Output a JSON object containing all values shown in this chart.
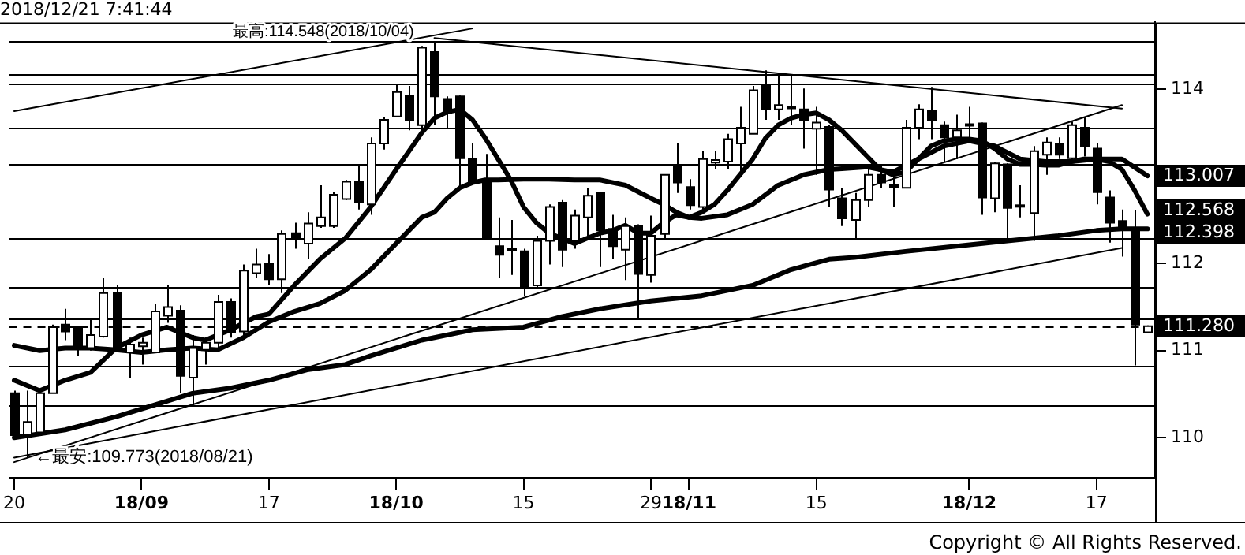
{
  "chart_data": {
    "type": "candlestick",
    "title": "2018/12/21 7:41:44",
    "categories": [
      "20",
      null,
      null,
      null,
      null,
      null,
      null,
      null,
      null,
      null,
      "18/09",
      null,
      null,
      null,
      null,
      null,
      null,
      null,
      null,
      null,
      "17",
      null,
      null,
      null,
      null,
      null,
      null,
      null,
      null,
      null,
      "18/10",
      null,
      null,
      null,
      null,
      null,
      null,
      null,
      null,
      null,
      "15",
      null,
      null,
      null,
      null,
      null,
      null,
      null,
      null,
      null,
      "29",
      null,
      null,
      "18/11",
      null,
      null,
      null,
      null,
      null,
      null,
      null,
      null,
      null,
      "15",
      null,
      null,
      null,
      null,
      null,
      null,
      null,
      null,
      null,
      null,
      null,
      "18/12",
      null,
      null,
      null,
      null,
      null,
      null,
      null,
      null,
      null,
      "17",
      null,
      null,
      null,
      null
    ],
    "ohlc": [
      [
        110.51,
        110.54,
        109.99,
        110.03
      ],
      [
        110.03,
        110.54,
        109.773,
        110.18
      ],
      [
        110.06,
        110.54,
        110.03,
        110.51
      ],
      [
        110.51,
        111.3,
        110.51,
        111.27
      ],
      [
        111.3,
        111.48,
        111.12,
        111.22
      ],
      [
        111.27,
        111.27,
        110.94,
        111.03
      ],
      [
        111.03,
        111.36,
        111.0,
        111.18
      ],
      [
        111.16,
        111.84,
        111.15,
        111.66
      ],
      [
        111.66,
        111.75,
        111.0,
        111.0
      ],
      [
        110.98,
        111.15,
        110.69,
        111.07
      ],
      [
        111.05,
        111.15,
        110.84,
        111.09
      ],
      [
        110.98,
        111.54,
        110.98,
        111.45
      ],
      [
        111.4,
        111.75,
        111.32,
        111.5
      ],
      [
        111.46,
        111.52,
        110.51,
        110.71
      ],
      [
        110.69,
        111.18,
        110.37,
        111.03
      ],
      [
        111.01,
        111.15,
        110.84,
        111.09
      ],
      [
        111.09,
        111.64,
        111.03,
        111.56
      ],
      [
        111.56,
        111.6,
        111.15,
        111.21
      ],
      [
        111.22,
        111.99,
        111.18,
        111.92
      ],
      [
        111.89,
        112.17,
        111.84,
        111.99
      ],
      [
        112.0,
        112.11,
        111.75,
        111.82
      ],
      [
        111.82,
        112.38,
        111.66,
        112.34
      ],
      [
        112.35,
        112.47,
        112.17,
        112.3
      ],
      [
        112.23,
        112.59,
        112.05,
        112.46
      ],
      [
        112.43,
        112.9,
        112.41,
        112.53
      ],
      [
        112.43,
        112.82,
        112.41,
        112.79
      ],
      [
        112.74,
        112.96,
        112.73,
        112.94
      ],
      [
        112.94,
        113.13,
        112.62,
        112.71
      ],
      [
        112.68,
        113.45,
        112.56,
        113.38
      ],
      [
        113.38,
        113.68,
        113.31,
        113.65
      ],
      [
        113.69,
        114.05,
        113.69,
        113.97
      ],
      [
        113.93,
        114.04,
        113.53,
        113.65
      ],
      [
        113.59,
        114.5,
        113.53,
        114.48
      ],
      [
        114.43,
        114.548,
        113.59,
        113.92
      ],
      [
        113.89,
        113.92,
        113.56,
        113.73
      ],
      [
        113.92,
        113.93,
        112.87,
        113.21
      ],
      [
        113.2,
        113.38,
        112.9,
        112.93
      ],
      [
        112.96,
        113.26,
        112.29,
        112.29
      ],
      [
        112.2,
        112.53,
        111.84,
        112.1
      ],
      [
        112.17,
        112.5,
        111.87,
        112.15
      ],
      [
        112.14,
        112.17,
        111.63,
        111.72
      ],
      [
        111.75,
        112.32,
        111.72,
        112.26
      ],
      [
        112.26,
        112.68,
        111.99,
        112.65
      ],
      [
        112.7,
        112.73,
        111.96,
        112.16
      ],
      [
        112.26,
        112.62,
        112.17,
        112.55
      ],
      [
        112.53,
        112.87,
        112.29,
        112.78
      ],
      [
        112.81,
        112.82,
        111.96,
        112.38
      ],
      [
        112.4,
        112.56,
        112.05,
        112.2
      ],
      [
        112.16,
        112.53,
        111.81,
        112.43
      ],
      [
        112.43,
        112.45,
        111.36,
        111.88
      ],
      [
        111.87,
        112.55,
        111.78,
        112.32
      ],
      [
        112.34,
        113.02,
        112.29,
        113.02
      ],
      [
        113.13,
        113.38,
        112.81,
        112.93
      ],
      [
        112.88,
        112.97,
        112.62,
        112.67
      ],
      [
        112.65,
        113.29,
        112.62,
        113.2
      ],
      [
        113.16,
        113.29,
        113.08,
        113.19
      ],
      [
        113.17,
        113.49,
        113.09,
        113.43
      ],
      [
        113.38,
        113.8,
        113.05,
        113.56
      ],
      [
        113.49,
        114.04,
        113.49,
        113.99
      ],
      [
        114.05,
        114.22,
        113.65,
        113.77
      ],
      [
        113.77,
        114.16,
        113.65,
        113.82
      ],
      [
        113.8,
        114.16,
        113.59,
        113.79
      ],
      [
        113.77,
        114.01,
        113.32,
        113.65
      ],
      [
        113.55,
        113.8,
        113.02,
        113.62
      ],
      [
        113.57,
        113.59,
        112.65,
        112.85
      ],
      [
        112.75,
        112.87,
        112.43,
        112.52
      ],
      [
        112.5,
        112.81,
        112.29,
        112.73
      ],
      [
        112.73,
        113.09,
        112.65,
        113.02
      ],
      [
        113.02,
        113.14,
        112.87,
        112.93
      ],
      [
        112.9,
        113.02,
        112.65,
        112.89
      ],
      [
        112.87,
        113.65,
        112.87,
        113.56
      ],
      [
        113.56,
        113.83,
        113.43,
        113.77
      ],
      [
        113.75,
        114.03,
        113.43,
        113.65
      ],
      [
        113.59,
        113.63,
        113.17,
        113.45
      ],
      [
        113.45,
        113.71,
        113.2,
        113.53
      ],
      [
        113.6,
        113.8,
        113.41,
        113.59
      ],
      [
        113.61,
        113.62,
        112.56,
        112.76
      ],
      [
        112.75,
        113.17,
        112.59,
        113.15
      ],
      [
        113.14,
        113.15,
        112.26,
        112.64
      ],
      [
        112.67,
        112.9,
        112.53,
        112.66
      ],
      [
        112.58,
        113.35,
        112.26,
        113.29
      ],
      [
        113.25,
        113.45,
        113.02,
        113.39
      ],
      [
        113.37,
        113.45,
        113.2,
        113.25
      ],
      [
        113.21,
        113.63,
        113.17,
        113.59
      ],
      [
        113.56,
        113.68,
        113.23,
        113.35
      ],
      [
        113.32,
        113.38,
        112.68,
        112.82
      ],
      [
        112.76,
        112.84,
        112.24,
        112.47
      ],
      [
        112.49,
        112.62,
        112.08,
        112.4
      ],
      [
        112.4,
        112.61,
        110.83,
        111.3
      ],
      [
        111.21,
        111.29,
        111.2,
        111.28
      ]
    ],
    "series": [
      {
        "type": "line",
        "color": "#000000",
        "values": [
          110.66,
          null,
          110.54,
          null,
          110.66,
          null,
          110.75,
          null,
          111.03,
          null,
          111.18,
          null,
          111.27,
          null,
          111.15,
          111.12,
          null,
          111.24,
          null,
          111.39,
          111.42,
          null,
          111.75,
          null,
          112.05,
          null,
          112.29,
          null,
          112.65,
          null,
          113.08,
          null,
          113.5,
          113.67,
          113.74,
          113.77,
          113.65,
          113.44,
          113.2,
          112.96,
          112.65,
          112.47,
          112.35,
          112.29,
          112.23,
          112.29,
          112.35,
          112.38,
          112.44,
          112.35,
          112.35,
          112.47,
          112.56,
          112.53,
          112.59,
          112.68,
          112.84,
          113.02,
          113.2,
          113.44,
          113.59,
          113.67,
          113.71,
          113.73,
          113.65,
          113.53,
          113.38,
          113.23,
          113.08,
          113.02,
          113.05,
          113.2,
          113.35,
          113.41,
          113.43,
          113.43,
          113.41,
          113.32,
          113.2,
          113.14,
          113.14,
          113.13,
          113.13,
          113.17,
          113.2,
          113.2,
          113.17,
          113.08,
          112.84,
          112.568
        ],
        "value_labels": [
          null,
          null,
          null,
          null,
          null,
          null,
          null,
          null,
          null,
          null,
          null,
          null,
          null,
          null,
          null,
          null,
          null,
          null,
          null,
          null,
          null,
          null,
          null,
          null,
          null,
          null,
          null,
          null,
          null,
          null,
          null,
          null,
          null,
          null,
          null,
          null,
          null,
          null,
          null,
          null,
          null,
          null,
          null,
          null,
          null,
          null,
          null,
          null,
          null,
          null,
          null,
          null,
          null,
          null,
          null,
          null,
          null,
          null,
          null,
          null,
          null,
          null,
          null,
          null,
          null,
          null,
          null,
          null,
          null,
          null,
          null,
          null,
          null,
          null,
          null,
          null,
          null,
          null,
          null,
          null,
          null,
          null,
          null,
          null,
          null,
          null,
          null,
          null,
          null,
          "112.568"
        ]
      },
      {
        "type": "line",
        "color": "#000000",
        "values": [
          111.06,
          null,
          111.0,
          null,
          111.03,
          null,
          111.03,
          null,
          111.01,
          null,
          110.98,
          null,
          111.01,
          null,
          111.03,
          null,
          111.01,
          null,
          111.15,
          null,
          111.33,
          null,
          111.45,
          null,
          111.54,
          null,
          111.69,
          null,
          111.93,
          null,
          112.23,
          null,
          112.53,
          112.59,
          112.75,
          112.87,
          112.93,
          112.96,
          112.96,
          null,
          112.97,
          null,
          112.97,
          null,
          112.96,
          null,
          112.96,
          null,
          112.9,
          null,
          112.75,
          112.68,
          112.59,
          112.53,
          112.52,
          null,
          112.56,
          null,
          112.68,
          null,
          112.9,
          null,
          113.02,
          null,
          113.08,
          113.09,
          null,
          113.11,
          null,
          113.05,
          null,
          113.2,
          null,
          113.35,
          null,
          113.41,
          null,
          113.35,
          null,
          113.2,
          null,
          113.17,
          null,
          113.17,
          null,
          113.2,
          null,
          113.2,
          null,
          113.007
        ],
        "value_labels": [
          null,
          null,
          null,
          null,
          null,
          null,
          null,
          null,
          null,
          null,
          null,
          null,
          null,
          null,
          null,
          null,
          null,
          null,
          null,
          null,
          null,
          null,
          null,
          null,
          null,
          null,
          null,
          null,
          null,
          null,
          null,
          null,
          null,
          null,
          null,
          null,
          null,
          null,
          null,
          null,
          null,
          null,
          null,
          null,
          null,
          null,
          null,
          null,
          null,
          null,
          null,
          null,
          null,
          null,
          null,
          null,
          null,
          null,
          null,
          null,
          null,
          null,
          null,
          null,
          null,
          null,
          null,
          null,
          null,
          null,
          null,
          null,
          null,
          null,
          null,
          null,
          null,
          null,
          null,
          null,
          null,
          null,
          null,
          null,
          null,
          null,
          null,
          null,
          null,
          "113.007"
        ]
      },
      {
        "type": "line",
        "color": "#000000",
        "values": [
          110.0,
          null,
          null,
          null,
          110.09,
          null,
          null,
          null,
          110.24,
          null,
          null,
          null,
          110.42,
          null,
          110.51,
          null,
          null,
          110.57,
          null,
          null,
          110.66,
          null,
          null,
          110.78,
          null,
          null,
          110.84,
          null,
          110.94,
          null,
          111.03,
          null,
          111.12,
          111.15,
          null,
          null,
          111.24,
          null,
          null,
          null,
          111.27,
          null,
          null,
          111.39,
          null,
          null,
          111.48,
          null,
          null,
          null,
          111.57,
          null,
          null,
          null,
          111.63,
          null,
          null,
          null,
          111.75,
          null,
          null,
          111.93,
          null,
          null,
          112.05,
          null,
          112.07,
          null,
          null,
          null,
          112.14,
          null,
          null,
          null,
          112.2,
          null,
          null,
          null,
          112.26,
          null,
          null,
          null,
          112.32,
          null,
          null,
          112.38,
          null,
          112.4,
          null,
          112.398
        ],
        "value_labels": [
          null,
          null,
          null,
          null,
          null,
          null,
          null,
          null,
          null,
          null,
          null,
          null,
          null,
          null,
          null,
          null,
          null,
          null,
          null,
          null,
          null,
          null,
          null,
          null,
          null,
          null,
          null,
          null,
          null,
          null,
          null,
          null,
          null,
          null,
          null,
          null,
          null,
          null,
          null,
          null,
          null,
          null,
          null,
          null,
          null,
          null,
          null,
          null,
          null,
          null,
          null,
          null,
          null,
          null,
          null,
          null,
          null,
          null,
          null,
          null,
          null,
          null,
          null,
          null,
          null,
          null,
          null,
          null,
          null,
          null,
          null,
          null,
          null,
          null,
          null,
          null,
          null,
          null,
          null,
          null,
          null,
          null,
          null,
          null,
          null,
          null,
          null,
          null,
          null,
          "112.398"
        ]
      },
      {
        "type": "line",
        "color": "#000000",
        "values": [
          113.75,
          null,
          null,
          null,
          null,
          null,
          null,
          null,
          null,
          null,
          null,
          null,
          null,
          null,
          null,
          null,
          null,
          null,
          null,
          null,
          null,
          null,
          null,
          null,
          null,
          null,
          null,
          null,
          null,
          null,
          null,
          null,
          null,
          null,
          null,
          null,
          114.7,
          null,
          null,
          null,
          null,
          null,
          null,
          null,
          null,
          null,
          null,
          null,
          null,
          null,
          null,
          null,
          null,
          null,
          null,
          null,
          null,
          null,
          null,
          null,
          null,
          null,
          null,
          null,
          null,
          null,
          null,
          null,
          null,
          null,
          null,
          null,
          null,
          null,
          null,
          null,
          null,
          null,
          null,
          null,
          null,
          null,
          null,
          null,
          null,
          null,
          null,
          null,
          null,
          null
        ]
      },
      {
        "type": "line",
        "color": "#000000",
        "values": [
          null,
          null,
          null,
          null,
          null,
          null,
          null,
          null,
          null,
          null,
          null,
          null,
          null,
          null,
          null,
          null,
          null,
          null,
          null,
          null,
          null,
          null,
          null,
          null,
          null,
          null,
          null,
          null,
          null,
          null,
          null,
          null,
          null,
          114.59,
          null,
          null,
          null,
          null,
          null,
          null,
          null,
          null,
          null,
          null,
          null,
          null,
          null,
          null,
          null,
          null,
          null,
          null,
          null,
          null,
          null,
          null,
          null,
          null,
          null,
          null,
          null,
          null,
          null,
          null,
          null,
          null,
          null,
          null,
          null,
          null,
          null,
          null,
          null,
          null,
          null,
          null,
          null,
          null,
          null,
          null,
          null,
          null,
          null,
          null,
          null,
          null,
          null,
          113.78,
          null,
          null
        ]
      },
      {
        "type": "line",
        "color": "#000000",
        "values": [
          109.72,
          null,
          null,
          null,
          null,
          null,
          null,
          null,
          null,
          null,
          null,
          null,
          null,
          null,
          null,
          null,
          null,
          null,
          null,
          null,
          null,
          null,
          null,
          null,
          null,
          null,
          null,
          null,
          null,
          null,
          null,
          null,
          null,
          null,
          null,
          null,
          null,
          null,
          null,
          null,
          null,
          null,
          null,
          null,
          null,
          null,
          null,
          null,
          null,
          null,
          null,
          null,
          null,
          null,
          null,
          null,
          null,
          null,
          null,
          null,
          null,
          null,
          null,
          null,
          null,
          null,
          null,
          null,
          null,
          null,
          null,
          null,
          null,
          null,
          null,
          null,
          null,
          null,
          null,
          null,
          null,
          null,
          null,
          null,
          null,
          null,
          null,
          113.82,
          null,
          null
        ]
      },
      {
        "type": "line",
        "color": "#000000",
        "values": [
          109.77,
          null,
          null,
          null,
          null,
          null,
          null,
          null,
          null,
          null,
          null,
          null,
          null,
          null,
          null,
          null,
          null,
          null,
          null,
          null,
          null,
          null,
          null,
          null,
          null,
          null,
          null,
          null,
          null,
          null,
          null,
          null,
          null,
          null,
          null,
          null,
          null,
          null,
          null,
          null,
          null,
          null,
          null,
          null,
          null,
          null,
          null,
          null,
          null,
          null,
          null,
          null,
          null,
          null,
          null,
          null,
          null,
          null,
          null,
          null,
          null,
          null,
          null,
          null,
          null,
          null,
          null,
          null,
          null,
          null,
          null,
          null,
          null,
          null,
          null,
          null,
          null,
          null,
          null,
          null,
          null,
          null,
          null,
          null,
          null,
          null,
          null,
          112.18,
          null,
          null
        ]
      }
    ],
    "ylim": [
      109.54,
      114.77
    ],
    "yticks": [
      110,
      111,
      112,
      114
    ],
    "ref_lines": [
      {
        "axis": "y",
        "value": 114.55
      },
      {
        "axis": "y",
        "value": 114.18
      },
      {
        "axis": "y",
        "value": 114.07
      },
      {
        "axis": "y",
        "value": 113.56
      },
      {
        "axis": "y",
        "value": 113.14
      },
      {
        "axis": "y",
        "value": 112.29
      },
      {
        "axis": "y",
        "value": 111.73
      },
      {
        "axis": "y",
        "value": 111.37
      },
      {
        "axis": "y",
        "value": 110.82
      },
      {
        "axis": "y",
        "value": 110.37
      },
      {
        "axis": "y",
        "value": 111.28,
        "label": "111.280",
        "line_style": "dashed"
      }
    ],
    "annotations": [
      {
        "text": "最高:114.548(2018/10/04)",
        "y": 114.548
      },
      "←最安:109.773(2018/08/21)",
      "Copyright © All Rights Reserved."
    ],
    "grid": false,
    "legend": false,
    "marker": "none",
    "line_style": "solid"
  }
}
